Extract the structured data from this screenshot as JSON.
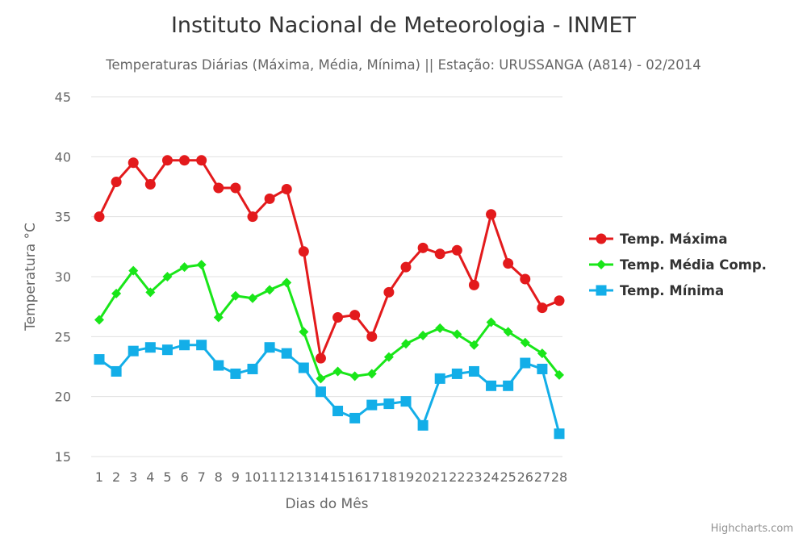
{
  "chart_data": {
    "type": "line",
    "title": "Instituto Nacional de Meteorologia - INMET",
    "subtitle": "Temperaturas Diárias (Máxima, Média, Mínima) || Estação: URUSSANGA (A814) - 02/2014",
    "xlabel": "Dias do Mês",
    "ylabel": "Temperatura °C",
    "ylim": [
      15,
      45
    ],
    "yticks": [
      "15",
      "20",
      "25",
      "30",
      "35",
      "40",
      "45"
    ],
    "categories": [
      "1",
      "2",
      "3",
      "4",
      "5",
      "6",
      "7",
      "8",
      "9",
      "10",
      "11",
      "12",
      "13",
      "14",
      "15",
      "16",
      "17",
      "18",
      "19",
      "20",
      "21",
      "22",
      "23",
      "24",
      "25",
      "26",
      "27",
      "28"
    ],
    "grid": true,
    "legend_position": "right",
    "series": [
      {
        "name": "Temp. Máxima",
        "color": "#e31a1c",
        "marker": "circle",
        "values": [
          35.0,
          37.9,
          39.5,
          37.7,
          39.7,
          39.7,
          39.7,
          37.4,
          37.4,
          35.0,
          36.5,
          37.3,
          32.1,
          23.2,
          26.6,
          26.8,
          25.0,
          28.7,
          30.8,
          32.4,
          31.9,
          32.2,
          29.3,
          35.2,
          31.1,
          29.8,
          27.4,
          28.0
        ]
      },
      {
        "name": "Temp. Média Comp.",
        "color": "#19e619",
        "marker": "diamond",
        "values": [
          26.4,
          28.6,
          30.5,
          28.7,
          30.0,
          30.8,
          31.0,
          26.6,
          28.4,
          28.2,
          28.9,
          29.5,
          25.4,
          21.5,
          22.1,
          21.7,
          21.9,
          23.3,
          24.4,
          25.1,
          25.7,
          25.2,
          24.3,
          26.2,
          25.4,
          24.5,
          23.6,
          21.8
        ]
      },
      {
        "name": "Temp. Mínima",
        "color": "#13aee8",
        "marker": "square",
        "values": [
          23.1,
          22.1,
          23.8,
          24.1,
          23.9,
          24.3,
          24.3,
          22.6,
          21.9,
          22.3,
          24.1,
          23.6,
          22.4,
          20.4,
          18.8,
          18.2,
          19.3,
          19.4,
          19.6,
          17.6,
          21.5,
          21.9,
          22.1,
          20.9,
          20.9,
          22.8,
          22.3,
          16.9
        ]
      }
    ],
    "credits": "Highcharts.com"
  }
}
